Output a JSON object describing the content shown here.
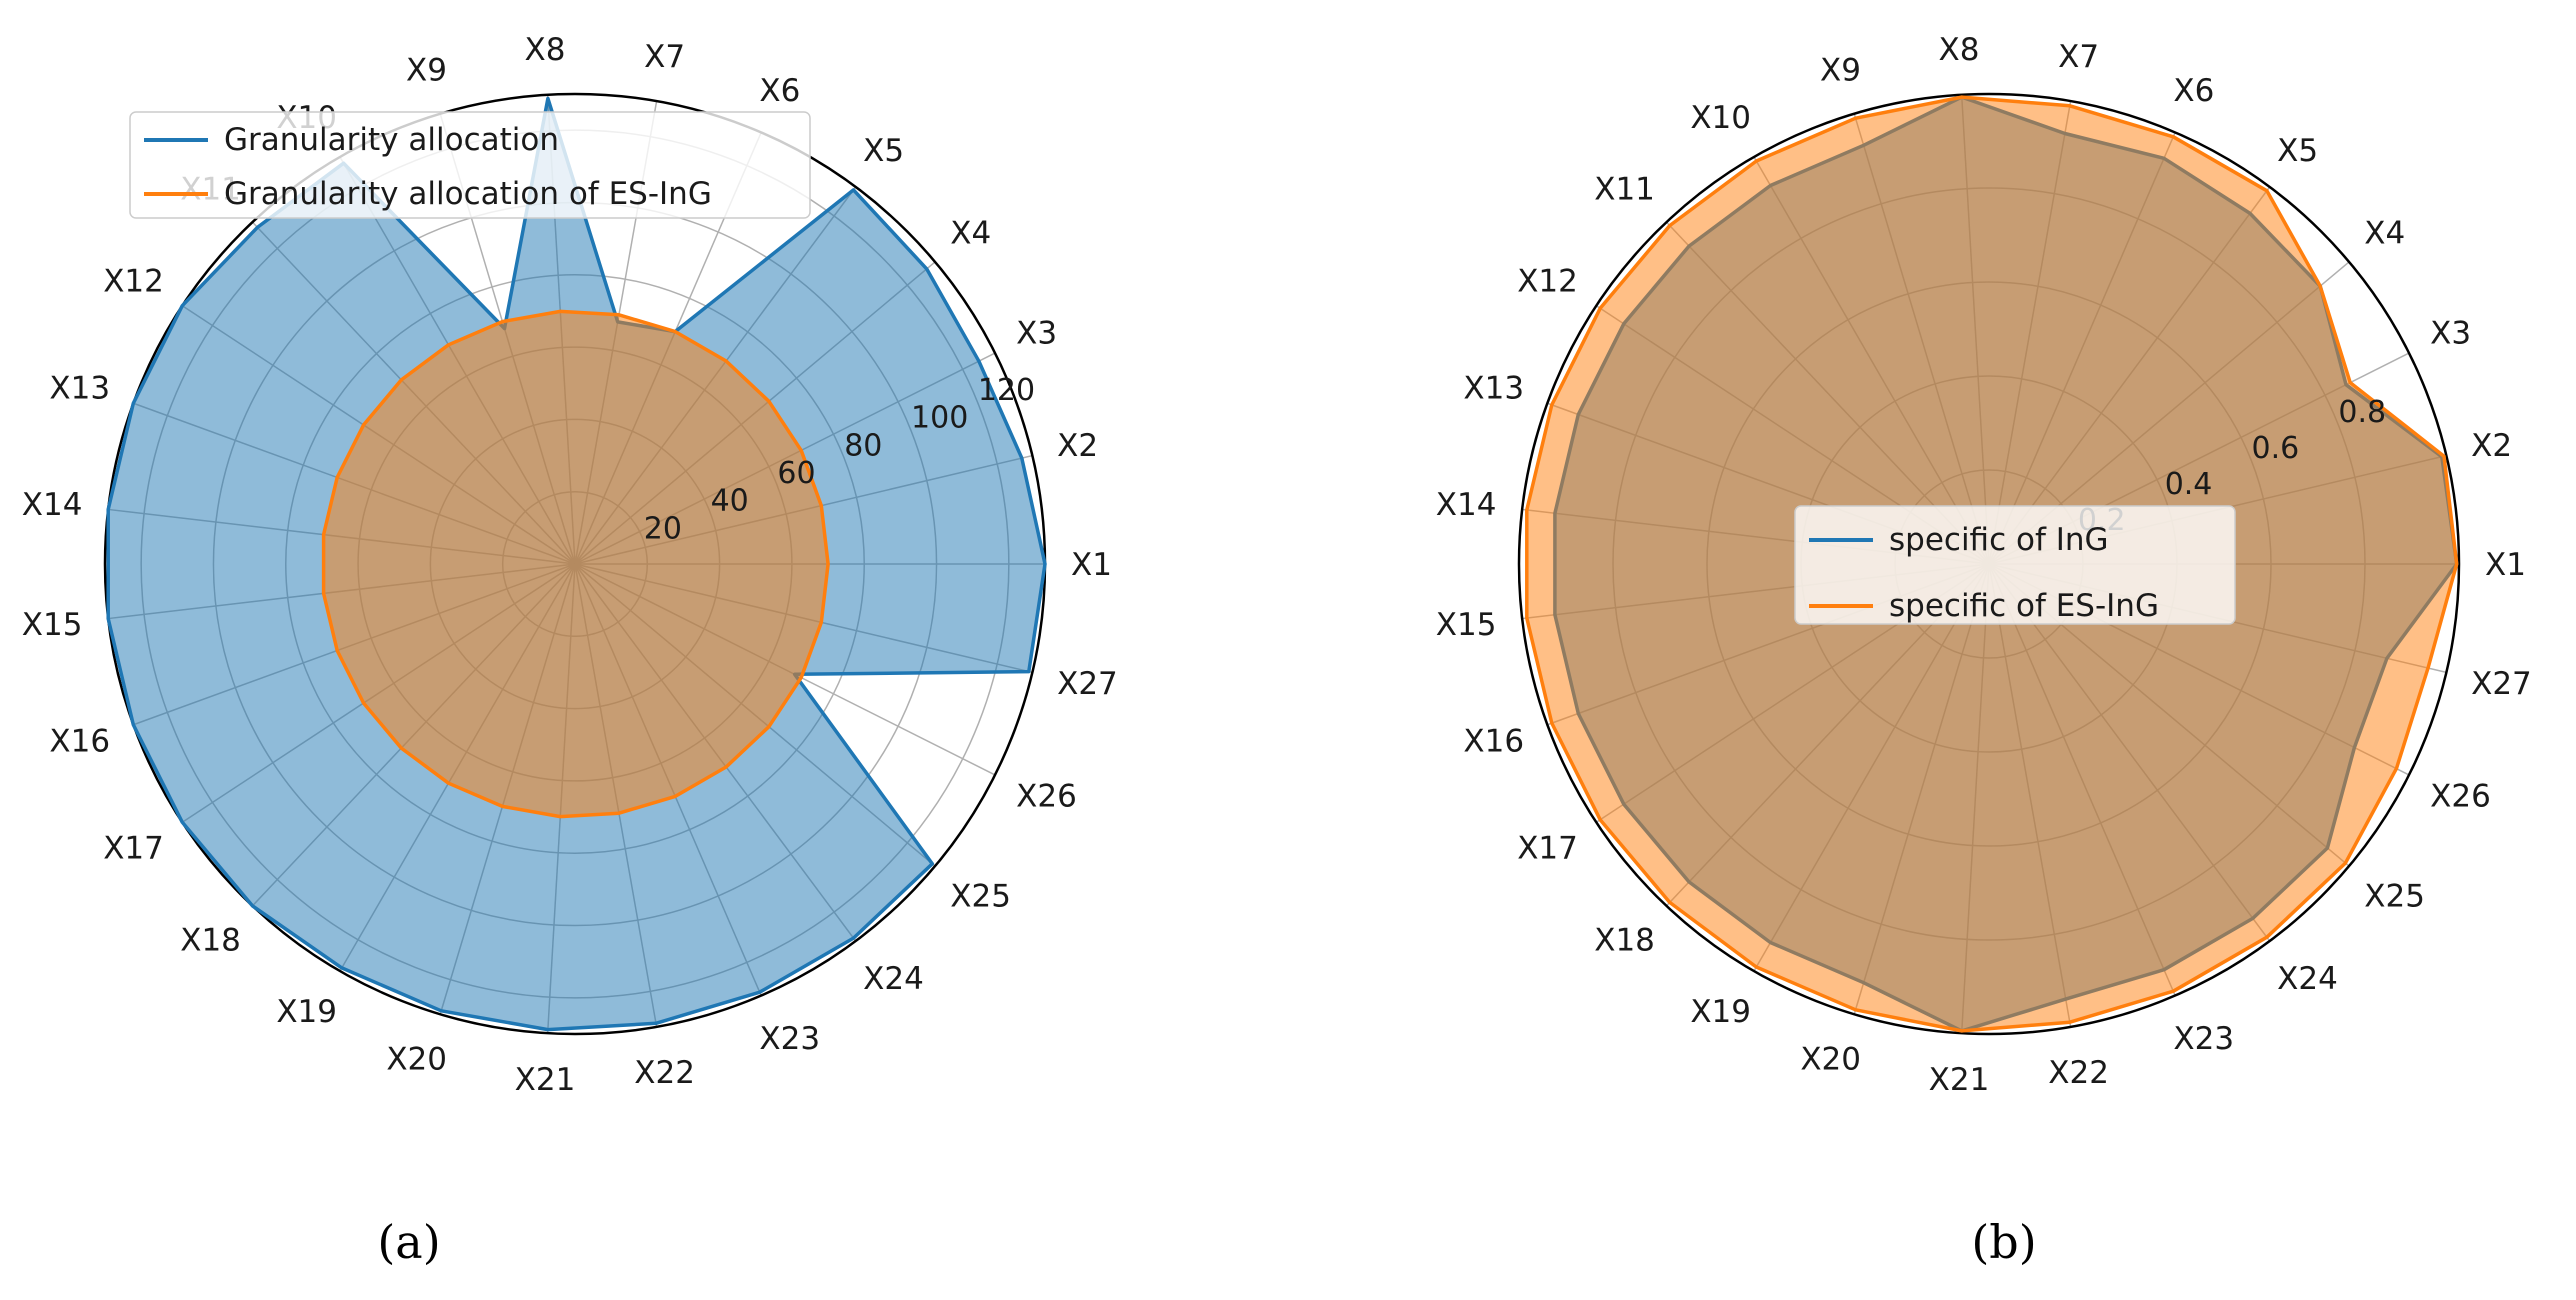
{
  "colors": {
    "blue": "#1f77b4",
    "orange": "#ff7f0e",
    "blue_fill": "#8fbadb",
    "orange_fill": "#ffb270",
    "grid": "#b0b0b0"
  },
  "chart_data": [
    {
      "type": "radar",
      "panel": "a",
      "caption": "(a)",
      "categories": [
        "X1",
        "X2",
        "X3",
        "X4",
        "X5",
        "X6",
        "X7",
        "X8",
        "X9",
        "X10",
        "X11",
        "X12",
        "X13",
        "X14",
        "X15",
        "X16",
        "X17",
        "X18",
        "X19",
        "X20",
        "X21",
        "X22",
        "X23",
        "X24",
        "X25",
        "X26",
        "X27"
      ],
      "radial_ticks": [
        "20",
        "40",
        "60",
        "80",
        "100",
        "120"
      ],
      "radial_tick_values": [
        20,
        40,
        60,
        80,
        100,
        120
      ],
      "rlim": [
        0,
        130
      ],
      "grid": true,
      "legend_placement": "upper-left",
      "series": [
        {
          "name": "Granularity allocation",
          "color": "#1f77b4",
          "values": [
            130,
            127,
            125,
            127,
            129,
            70,
            68,
            129,
            68,
            128,
            128,
            130,
            130,
            130,
            130,
            130,
            130,
            130,
            129,
            129,
            129,
            129,
            129,
            129,
            129,
            68,
            129
          ]
        },
        {
          "name": "Granularity allocation of ES-InG",
          "color": "#ff7f0e",
          "values": [
            70,
            70,
            70,
            70,
            70,
            70,
            70,
            70,
            70,
            70,
            70,
            70,
            70,
            70,
            70,
            70,
            70,
            70,
            70,
            70,
            70,
            70,
            70,
            70,
            70,
            70,
            70
          ]
        }
      ]
    },
    {
      "type": "radar",
      "panel": "b",
      "caption": "(b)",
      "categories": [
        "X1",
        "X2",
        "X3",
        "X4",
        "X5",
        "X6",
        "X7",
        "X8",
        "X9",
        "X10",
        "X11",
        "X12",
        "X13",
        "X14",
        "X15",
        "X16",
        "X17",
        "X18",
        "X19",
        "X20",
        "X21",
        "X22",
        "X23",
        "X24",
        "X25",
        "X26",
        "X27"
      ],
      "radial_ticks": [
        "0.2",
        "0.4",
        "0.6",
        "0.8"
      ],
      "radial_tick_values": [
        0.2,
        0.4,
        0.6,
        0.8
      ],
      "rlim": [
        0,
        1
      ],
      "grid": true,
      "legend_placement": "center",
      "series": [
        {
          "name": "specific of InG",
          "color": "#1f77b4",
          "values": [
            0.995,
            0.99,
            0.85,
            0.92,
            0.93,
            0.94,
            0.93,
            0.995,
            0.93,
            0.93,
            0.93,
            0.93,
            0.93,
            0.93,
            0.93,
            0.93,
            0.93,
            0.93,
            0.93,
            0.93,
            0.995,
            0.94,
            0.94,
            0.94,
            0.94,
            0.87,
            0.87
          ]
        },
        {
          "name": "specific of ES-InG",
          "color": "#ff7f0e",
          "values": [
            0.995,
            0.995,
            0.86,
            0.92,
            0.99,
            0.99,
            0.99,
            0.995,
            0.99,
            0.99,
            0.99,
            0.99,
            0.99,
            0.99,
            0.99,
            0.99,
            0.99,
            0.99,
            0.99,
            0.99,
            0.995,
            0.99,
            0.99,
            0.99,
            0.99,
            0.97,
            0.96
          ]
        }
      ]
    }
  ]
}
